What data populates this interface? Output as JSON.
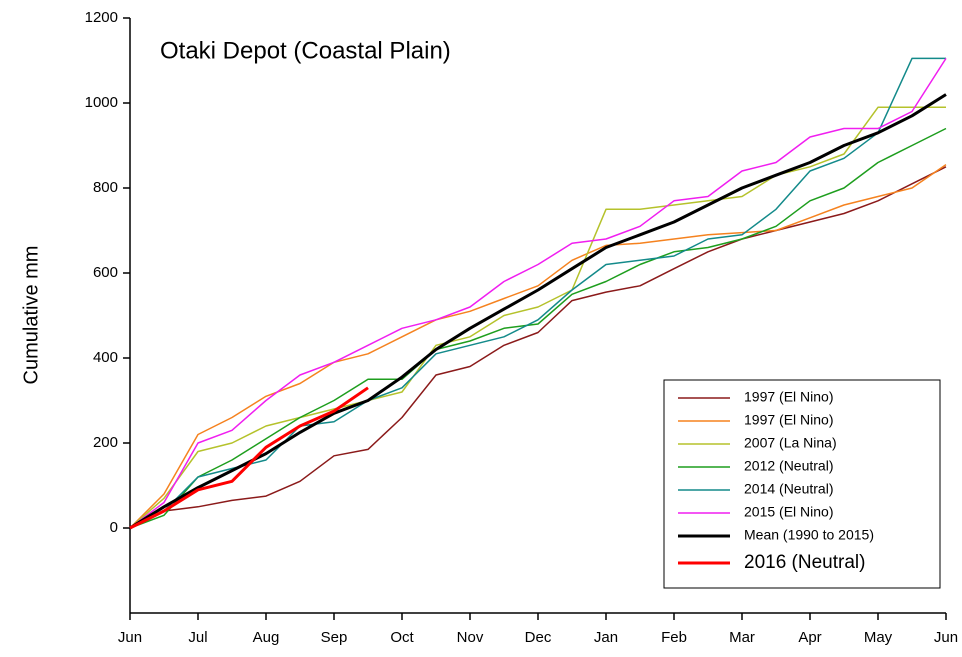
{
  "chart_data": {
    "type": "line",
    "title": "Otaki Depot (Coastal Plain)",
    "ylabel": "Cumulative mm",
    "x": [
      0,
      0.5,
      1,
      1.5,
      2,
      2.5,
      3,
      3.5,
      4,
      4.5,
      5,
      5.5,
      6,
      6.5,
      7,
      7.5,
      8,
      8.5,
      9,
      9.5,
      10,
      10.5,
      11,
      11.5,
      12
    ],
    "xlim": [
      0,
      12
    ],
    "xticks": [
      {
        "value": 0,
        "label": "Jun"
      },
      {
        "value": 1,
        "label": "Jul"
      },
      {
        "value": 2,
        "label": "Aug"
      },
      {
        "value": 3,
        "label": "Sep"
      },
      {
        "value": 4,
        "label": "Oct"
      },
      {
        "value": 5,
        "label": "Nov"
      },
      {
        "value": 6,
        "label": "Dec"
      },
      {
        "value": 7,
        "label": "Jan"
      },
      {
        "value": 8,
        "label": "Feb"
      },
      {
        "value": 9,
        "label": "Mar"
      },
      {
        "value": 10,
        "label": "Apr"
      },
      {
        "value": 11,
        "label": "May"
      },
      {
        "value": 12,
        "label": "Jun"
      }
    ],
    "ylim": [
      -200,
      1200
    ],
    "yticks": [
      0,
      200,
      400,
      600,
      800,
      1000,
      1200
    ],
    "legend": "lower right",
    "series": [
      {
        "name": "1997 (El Nino)",
        "color": "#8b1a1a",
        "width": 1.5,
        "values": [
          0,
          40,
          50,
          65,
          75,
          110,
          170,
          185,
          260,
          360,
          380,
          430,
          460,
          535,
          555,
          570,
          610,
          650,
          680,
          700,
          720,
          740,
          770,
          810,
          850
        ]
      },
      {
        "name": "1997 (El Nino)",
        "color": "#f5821f",
        "width": 1.5,
        "values": [
          0,
          80,
          220,
          260,
          310,
          340,
          390,
          410,
          450,
          490,
          510,
          540,
          570,
          630,
          665,
          670,
          680,
          690,
          695,
          700,
          730,
          760,
          780,
          800,
          855
        ]
      },
      {
        "name": "2007 (La Nina)",
        "color": "#b5c22b",
        "width": 1.5,
        "values": [
          0,
          70,
          180,
          200,
          240,
          260,
          280,
          300,
          320,
          430,
          450,
          500,
          520,
          560,
          750,
          750,
          760,
          770,
          780,
          830,
          850,
          880,
          990,
          990,
          990
        ]
      },
      {
        "name": "2012 (Neutral)",
        "color": "#1e9e1e",
        "width": 1.5,
        "values": [
          0,
          30,
          120,
          160,
          210,
          260,
          300,
          350,
          350,
          420,
          440,
          470,
          480,
          550,
          580,
          620,
          650,
          660,
          680,
          710,
          770,
          800,
          860,
          900,
          940
        ]
      },
      {
        "name": "2014 (Neutral)",
        "color": "#138a8a",
        "width": 1.5,
        "values": [
          0,
          40,
          120,
          140,
          160,
          240,
          250,
          300,
          330,
          410,
          430,
          450,
          490,
          560,
          620,
          630,
          640,
          680,
          690,
          750,
          840,
          870,
          930,
          1105,
          1105
        ]
      },
      {
        "name": "2015 (El Nino)",
        "color": "#f01ef0",
        "width": 1.5,
        "values": [
          0,
          60,
          200,
          230,
          300,
          360,
          390,
          430,
          470,
          490,
          520,
          580,
          620,
          670,
          680,
          710,
          770,
          780,
          840,
          860,
          920,
          940,
          940,
          980,
          1105
        ]
      },
      {
        "name": "Mean (1990 to 2015)",
        "color": "#000000",
        "width": 3,
        "values": [
          0,
          50,
          95,
          135,
          175,
          225,
          270,
          300,
          355,
          420,
          470,
          515,
          560,
          610,
          660,
          690,
          720,
          760,
          800,
          830,
          860,
          900,
          930,
          970,
          1020
        ]
      },
      {
        "name": "2016 (Neutral)",
        "color": "#ff0000",
        "width": 3,
        "values": [
          0,
          40,
          90,
          110,
          190,
          240,
          275,
          330,
          null,
          null,
          null,
          null,
          null,
          null,
          null,
          null,
          null,
          null,
          null,
          null,
          null,
          null,
          null,
          null,
          null
        ]
      }
    ]
  }
}
